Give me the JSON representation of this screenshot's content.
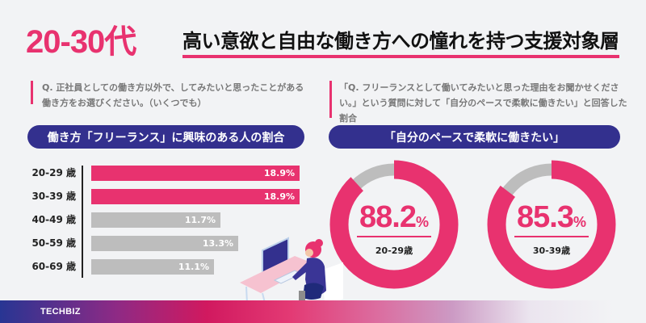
{
  "header": {
    "highlight": "20-30代",
    "title": "高い意欲と自由な働き方への憧れを持つ支援対象層"
  },
  "left": {
    "question_line1": "Q. 正社員としての働き方以外で、してみたいと思ったことがある",
    "question_line2": "働き方をお選びください。（いくつでも）",
    "pill": "働き方「フリーランス」に興味のある人の割合"
  },
  "right": {
    "question_line1": "「Q. フリーランスとして働いてみたいと思った理由をお聞かせくださ",
    "question_line2": "い。」という質問に対して「自分のペースで柔軟に働きたい」と回答した",
    "question_line3": "割合",
    "pill": "「自分のペースで柔軟に働きたい」"
  },
  "colors": {
    "accent_pink": "#e8326f",
    "navy": "#33308e",
    "gray_bar": "#bdbdbd",
    "background": "#f2f3f5"
  },
  "footer": {
    "brand": "TECHBIZ"
  },
  "chart_data": [
    {
      "type": "bar",
      "orientation": "horizontal",
      "title": "働き方「フリーランス」に興味のある人の割合",
      "categories": [
        "20-29 歳",
        "30-39 歳",
        "40-49 歳",
        "50-59 歳",
        "60-69 歳"
      ],
      "values": [
        18.9,
        18.9,
        11.7,
        13.3,
        11.1
      ],
      "labels": [
        "18.9%",
        "18.9%",
        "11.7%",
        "13.3%",
        "11.1%"
      ],
      "highlighted": [
        true,
        true,
        false,
        false,
        false
      ],
      "unit": "%"
    },
    {
      "type": "pie",
      "variant": "donut",
      "title": "「自分のペースで柔軟に働きたい」",
      "series": [
        {
          "name": "20-29歳",
          "value": 88.2,
          "label": "88.2",
          "pct": "%"
        },
        {
          "name": "30-39歳",
          "value": 85.3,
          "label": "85.3",
          "pct": "%"
        }
      ],
      "unit": "%"
    }
  ]
}
